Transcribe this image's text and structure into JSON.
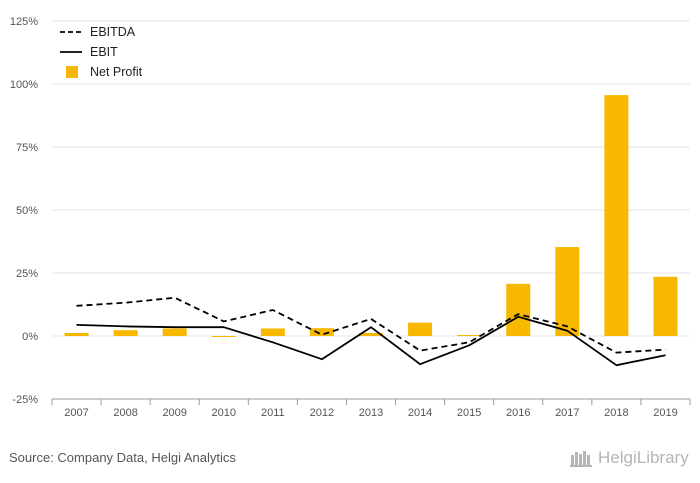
{
  "chart_data": {
    "type": "bar",
    "categories": [
      "2007",
      "2008",
      "2009",
      "2010",
      "2011",
      "2012",
      "2013",
      "2014",
      "2015",
      "2016",
      "2017",
      "2018",
      "2019"
    ],
    "series": [
      {
        "name": "EBITDA",
        "kind": "line",
        "style": "dashed",
        "color": "#000000",
        "values": [
          12.0,
          13.2,
          15.2,
          5.8,
          10.3,
          0.5,
          6.8,
          -5.8,
          -2.5,
          8.7,
          3.8,
          -6.6,
          -5.4
        ]
      },
      {
        "name": "EBIT",
        "kind": "line",
        "style": "solid",
        "color": "#000000",
        "values": [
          4.4,
          3.8,
          3.5,
          3.5,
          -2.5,
          -9.2,
          3.5,
          -11.2,
          -3.7,
          7.6,
          2.1,
          -11.6,
          -7.6
        ]
      },
      {
        "name": "Net Profit",
        "kind": "bar",
        "color": "#F9B800",
        "values": [
          1.2,
          2.3,
          3.0,
          -0.3,
          3.0,
          3.1,
          1.2,
          5.3,
          0.4,
          20.7,
          35.3,
          95.6,
          23.5
        ]
      }
    ],
    "ylim": [
      -25,
      125
    ],
    "yticks": [
      "-25%",
      "0%",
      "25%",
      "50%",
      "75%",
      "100%",
      "125%"
    ],
    "ytick_values": [
      -25,
      0,
      25,
      50,
      75,
      100,
      125
    ],
    "grid": true,
    "legend": "top-left"
  },
  "footer": {
    "source": "Source: Company Data, Helgi Analytics",
    "brand": "HelgiLibrary"
  }
}
